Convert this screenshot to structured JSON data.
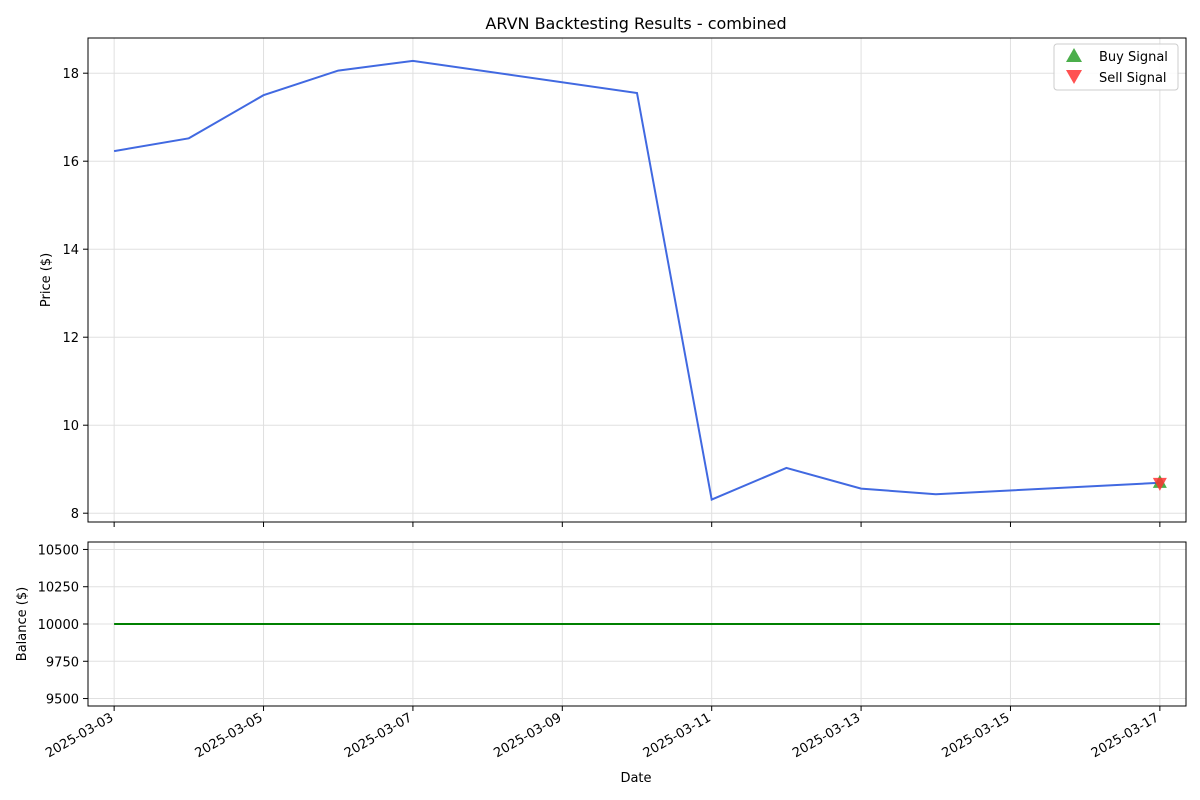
{
  "chart_data": [
    {
      "type": "line",
      "title": "ARVN Backtesting Results - combined",
      "ylabel": "Price ($)",
      "xlabel": "",
      "ylim": [
        7.8,
        18.8
      ],
      "yticks": [
        8,
        10,
        12,
        14,
        16,
        18
      ],
      "grid": true,
      "legend_position": "top-right",
      "x": [
        "2025-03-03",
        "2025-03-04",
        "2025-03-05",
        "2025-03-06",
        "2025-03-07",
        "2025-03-10",
        "2025-03-11",
        "2025-03-12",
        "2025-03-13",
        "2025-03-14",
        "2025-03-17"
      ],
      "series": [
        {
          "color": "#4169e1",
          "values": [
            16.23,
            16.52,
            17.5,
            18.06,
            18.28,
            17.55,
            8.31,
            9.03,
            8.56,
            8.43,
            8.69
          ]
        }
      ],
      "signals": [
        {
          "name": "Buy Signal",
          "marker": "triangle-up",
          "color": "#2ca02c",
          "x": "2025-03-17",
          "y": 8.69
        },
        {
          "name": "Sell Signal",
          "marker": "triangle-down",
          "color": "#ff3333",
          "x": "2025-03-17",
          "y": 8.69
        }
      ]
    },
    {
      "type": "line",
      "title": "",
      "ylabel": "Balance ($)",
      "xlabel": "Date",
      "ylim": [
        9450,
        10550
      ],
      "yticks": [
        9500,
        9750,
        10000,
        10250,
        10500
      ],
      "grid": true,
      "x": [
        "2025-03-03",
        "2025-03-17"
      ],
      "series": [
        {
          "color": "#008000",
          "values": [
            10000,
            10000
          ]
        }
      ]
    }
  ],
  "x_ticks": [
    "2025-03-03",
    "2025-03-05",
    "2025-03-07",
    "2025-03-09",
    "2025-03-11",
    "2025-03-13",
    "2025-03-15",
    "2025-03-17"
  ],
  "x_range": [
    "2025-03-02",
    "2025-03-17"
  ]
}
